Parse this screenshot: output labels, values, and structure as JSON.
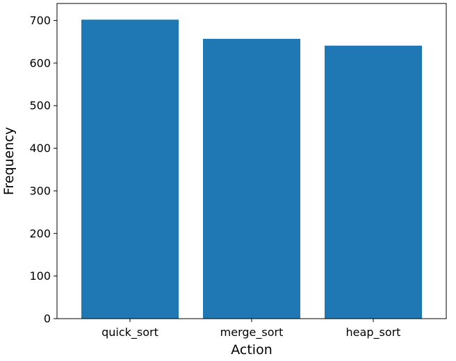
{
  "chart_data": {
    "type": "bar",
    "categories": [
      "quick_sort",
      "merge_sort",
      "heap_sort"
    ],
    "values": [
      702,
      657,
      641
    ],
    "title": "",
    "xlabel": "Action",
    "ylabel": "Frequency",
    "ylim": [
      0,
      740
    ],
    "yticks": [
      0,
      100,
      200,
      300,
      400,
      500,
      600,
      700
    ],
    "grid": false,
    "legend": "none",
    "colors": {
      "bar": "#1f77b4",
      "axis": "#000000",
      "background": "#ffffff"
    }
  }
}
